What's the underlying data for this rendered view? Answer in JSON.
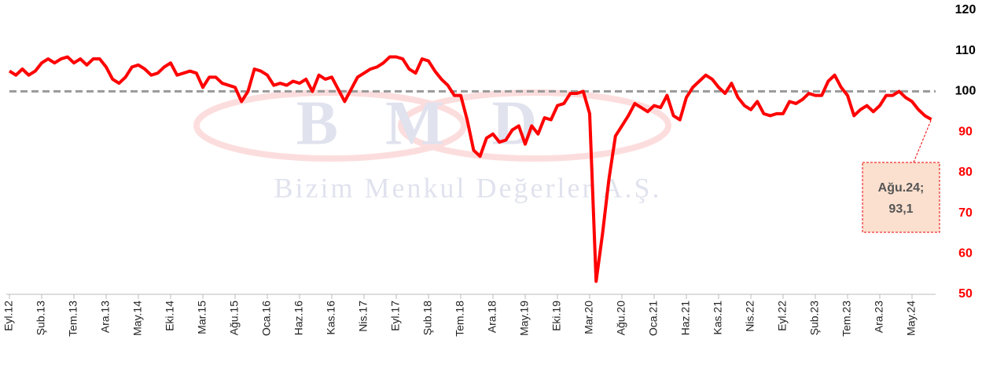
{
  "chart_data": {
    "type": "line",
    "categories": [
      "Eyl.12",
      null,
      null,
      null,
      null,
      "Şub.13",
      null,
      null,
      null,
      null,
      "Tem.13",
      null,
      null,
      null,
      null,
      "Ara.13",
      null,
      null,
      null,
      null,
      "May.14",
      null,
      null,
      null,
      null,
      "Eki.14",
      null,
      null,
      null,
      null,
      "Mar.15",
      null,
      null,
      null,
      null,
      "Ağu.15",
      null,
      null,
      null,
      null,
      "Oca.16",
      null,
      null,
      null,
      null,
      "Haz.16",
      null,
      null,
      null,
      null,
      "Kas.16",
      null,
      null,
      null,
      null,
      "Nis.17",
      null,
      null,
      null,
      null,
      "Eyl.17",
      null,
      null,
      null,
      null,
      "Şub.18",
      null,
      null,
      null,
      null,
      "Tem.18",
      null,
      null,
      null,
      null,
      "Ara.18",
      null,
      null,
      null,
      null,
      "May.19",
      null,
      null,
      null,
      null,
      "Eki.19",
      null,
      null,
      null,
      null,
      "Mar.20",
      null,
      null,
      null,
      null,
      "Ağu.20",
      null,
      null,
      null,
      null,
      "Oca.21",
      null,
      null,
      null,
      null,
      "Haz.21",
      null,
      null,
      null,
      null,
      "Kas.21",
      null,
      null,
      null,
      null,
      "Nis.22",
      null,
      null,
      null,
      null,
      "Eyl.22",
      null,
      null,
      null,
      null,
      "Şub.23",
      null,
      null,
      null,
      null,
      "Tem.23",
      null,
      null,
      null,
      null,
      "Ara.23",
      null,
      null,
      null,
      null,
      "May.24",
      null,
      null,
      null
    ],
    "series": [
      {
        "color": "#ff0000",
        "values": [
          105,
          104,
          105.5,
          104,
          105,
          107,
          108,
          107,
          108,
          108.5,
          107,
          108,
          106.5,
          108,
          108,
          106,
          103,
          102,
          103.5,
          106,
          106.5,
          105.5,
          104,
          104.5,
          106,
          107,
          104,
          104.5,
          105,
          104.5,
          101,
          103.5,
          103.5,
          102,
          101.5,
          101,
          97.5,
          100,
          105.5,
          105,
          104,
          101.5,
          102,
          101.5,
          102.5,
          102,
          103,
          100,
          104,
          103,
          103.5,
          100.5,
          97.5,
          100.5,
          103.5,
          104.5,
          105.5,
          106,
          107,
          108.5,
          108.5,
          108,
          105.5,
          104.5,
          108,
          107.5,
          105,
          103,
          101.5,
          99,
          99,
          93,
          85.5,
          84,
          88.5,
          89.5,
          87.5,
          88,
          90.5,
          91.5,
          87,
          91.5,
          89.5,
          93.5,
          93,
          96.5,
          97,
          99.5,
          99.5,
          100,
          94.5,
          53.2,
          65,
          78.5,
          89,
          91.5,
          94,
          97,
          96,
          95,
          96.5,
          96,
          99,
          94,
          93,
          98.5,
          101,
          102.5,
          104,
          103,
          101,
          99.5,
          102,
          98.5,
          96.5,
          95.5,
          97.5,
          94.5,
          94,
          94.5,
          94.5,
          97.5,
          97,
          98,
          99.5,
          99,
          99,
          102.5,
          104,
          101,
          99,
          94,
          95.5,
          96.5,
          95,
          96.5,
          99,
          99,
          100,
          98.5,
          97.5,
          95.5,
          94,
          93.1
        ]
      }
    ],
    "reference_line": 100,
    "ylim": [
      50,
      120
    ],
    "yticks": [
      50,
      60,
      70,
      80,
      90,
      100,
      110,
      120
    ],
    "ytick_label_colors": [
      "#ff0000",
      "#ff0000",
      "#ff0000",
      "#ff0000",
      "#ff0000",
      "#000000",
      "#000000",
      "#000000"
    ],
    "annotation": {
      "lines": [
        "Ağu.24;",
        "93,1"
      ]
    },
    "watermark": [
      "BMD",
      "Bizim Menkul Değerler A.Ş."
    ]
  }
}
